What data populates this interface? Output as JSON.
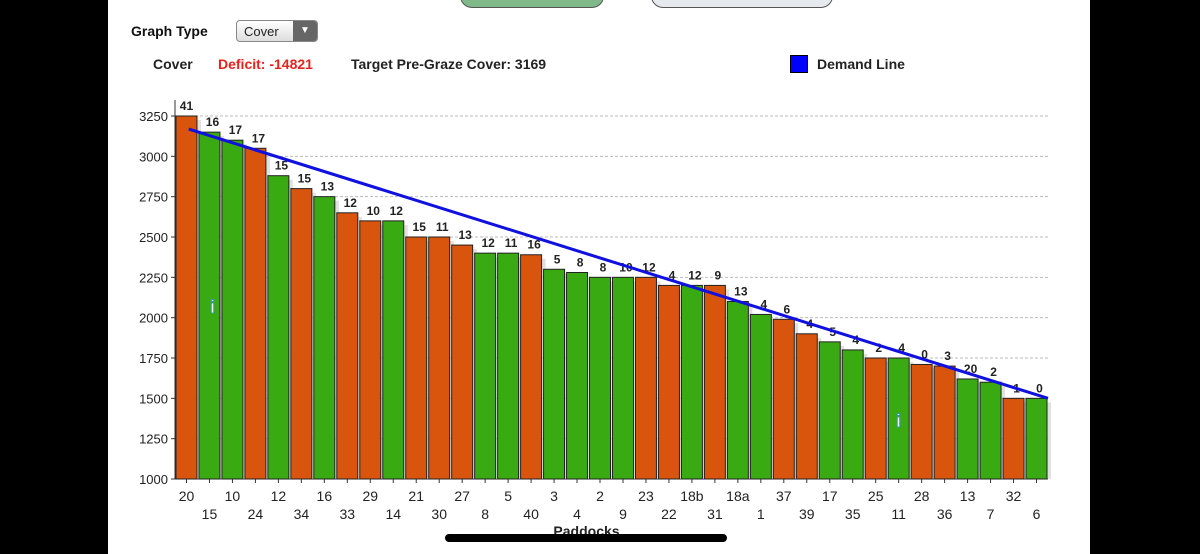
{
  "graph_type": {
    "label": "Graph Type",
    "selected": "Cover"
  },
  "header": {
    "cover_label": "Cover",
    "deficit_label": "Deficit:",
    "deficit_value": "-14821",
    "target_label": "Target Pre-Graze Cover:",
    "target_value": "3169",
    "legend_label": "Demand Line"
  },
  "colors": {
    "orange": "#d9540c",
    "green": "#3aaa12",
    "demand": "#1010e0"
  },
  "chart_data": {
    "type": "bar",
    "title": "",
    "xlabel": "Paddocks",
    "ylabel": "Cover",
    "ylim": [
      1000,
      3250
    ],
    "yticks": [
      1000,
      1250,
      1500,
      1750,
      2000,
      2250,
      2500,
      2750,
      3000,
      3250
    ],
    "categories": [
      "20",
      "15",
      "10",
      "24",
      "12",
      "34",
      "16",
      "33",
      "29",
      "14",
      "21",
      "30",
      "27",
      "8",
      "5",
      "40",
      "3",
      "4",
      "2",
      "9",
      "23",
      "22",
      "18b",
      "31",
      "18a",
      "1",
      "37",
      "39",
      "17",
      "35",
      "25",
      "11",
      "28",
      "36",
      "13",
      "7",
      "32",
      "6"
    ],
    "values": [
      3250,
      3150,
      3100,
      3050,
      2880,
      2800,
      2750,
      2650,
      2600,
      2600,
      2500,
      2500,
      2450,
      2400,
      2400,
      2390,
      2300,
      2280,
      2250,
      2250,
      2250,
      2200,
      2200,
      2200,
      2100,
      2020,
      1990,
      1900,
      1850,
      1800,
      1750,
      1750,
      1710,
      1700,
      1620,
      1600,
      1500,
      1500
    ],
    "bar_labels": [
      "41",
      "16",
      "17",
      "17",
      "15",
      "15",
      "13",
      "12",
      "10",
      "12",
      "15",
      "11",
      "13",
      "12",
      "11",
      "16",
      "5",
      "8",
      "8",
      "10",
      "12",
      "4",
      "12",
      "9",
      "13",
      "4",
      "6",
      "4",
      "5",
      "4",
      "2",
      "4",
      "0",
      "3",
      "20",
      "2",
      "1",
      "0"
    ],
    "bar_colors": [
      "orange",
      "green",
      "green",
      "orange",
      "green",
      "orange",
      "green",
      "orange",
      "orange",
      "green",
      "orange",
      "orange",
      "orange",
      "green",
      "green",
      "orange",
      "green",
      "green",
      "green",
      "green",
      "orange",
      "orange",
      "green",
      "orange",
      "green",
      "green",
      "orange",
      "orange",
      "green",
      "green",
      "orange",
      "green",
      "orange",
      "orange",
      "green",
      "green",
      "orange",
      "green"
    ],
    "demand_line": {
      "name": "Demand Line",
      "start": 3169,
      "end": 1500
    },
    "grid": true,
    "legend": "top-right"
  }
}
